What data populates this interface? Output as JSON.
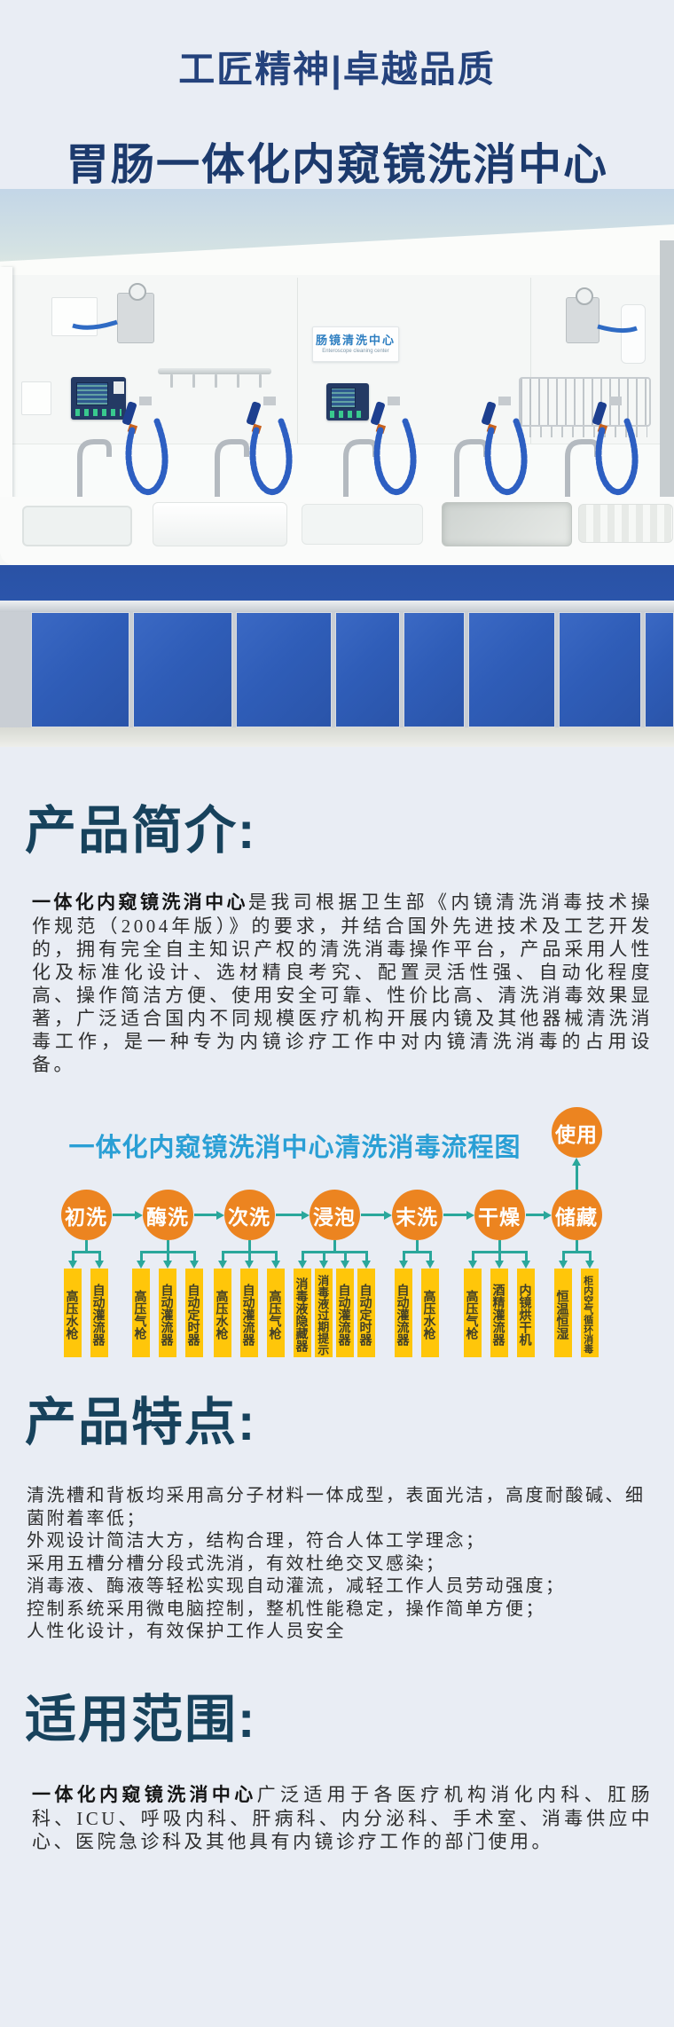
{
  "header": {
    "slogan": "工匠精神|卓越品质",
    "title": "胃肠一体化内窥镜洗消中心"
  },
  "photo": {
    "sign_cn": "肠镜清洗中心",
    "sign_en": "Enteroscope cleaning center"
  },
  "intro": {
    "heading": "产品简介:",
    "lead": "一体化内窥镜洗消中心",
    "body": "是我司根据卫生部《内镜清洗消毒技术操作规范（2004年版）》的要求，并结合国外先进技术及工艺开发的，拥有完全自主知识产权的清洗消毒操作平台，产品采用人性化及标准化设计、选材精良考究、配置灵活性强、自动化程度高、操作简洁方便、使用安全可靠、性价比高、清洗消毒效果显著，广泛适合国内不同规模医疗机构开展内镜及其他器械清洗消毒工作，是一种专为内镜诊疗工作中对内镜清洗消毒的占用设备。"
  },
  "flowchart": {
    "title": "一体化内窥镜洗消中心清洗消毒流程图",
    "final_step": "使用",
    "steps": [
      {
        "label": "初洗",
        "tools": [
          "高压水枪",
          "自动灌流器"
        ]
      },
      {
        "label": "酶洗",
        "tools": [
          "高压气枪",
          "自动灌流器",
          "自动定时器"
        ]
      },
      {
        "label": "次洗",
        "tools": [
          "高压水枪",
          "自动灌流器",
          "高压气枪"
        ]
      },
      {
        "label": "浸泡",
        "tools": [
          "消毒液隐藏器",
          "消毒液过期提示",
          "自动灌流器",
          "自动定时器"
        ]
      },
      {
        "label": "末洗",
        "tools": [
          "自动灌流器",
          "高压水枪"
        ]
      },
      {
        "label": "干燥",
        "tools": [
          "高压气枪",
          "酒精灌流器",
          "内镜烘干机"
        ]
      },
      {
        "label": "储藏",
        "tools": [
          "恒温恒湿",
          "柜内空气循环消毒"
        ]
      }
    ]
  },
  "features": {
    "heading": "产品特点:",
    "lines": [
      "清洗槽和背板均采用高分子材料一体成型，表面光洁，高度耐酸碱、细菌附着率低；",
      "外观设计简洁大方，结构合理，符合人体工学理念；",
      "采用五槽分槽分段式洗消，有效杜绝交叉感染；",
      "消毒液、酶液等轻松实现自动灌流，减轻工作人员劳动强度；",
      "控制系统采用微电脑控制，整机性能稳定，操作简单方便；",
      "人性化设计，有效保护工作人员安全"
    ]
  },
  "scope": {
    "heading": "适用范围:",
    "lead": "一体化内窥镜洗消中心",
    "body": "广泛适用于各医疗机构消化内科、肛肠科、ICU、呼吸内科、肝病科、内分泌科、手术室、消毒供应中心、医院急诊科及其他具有内镜诊疗工作的部门使用。"
  },
  "colors": {
    "page_bg": "#e9edf4",
    "slogan_navy": "#24427c",
    "title_navy": "#1c3a6d",
    "heading_dark": "#17425c",
    "flow_title_blue": "#2a9fd5",
    "step_orange": "#ec8420",
    "tool_yellow": "#ffc60a",
    "arrow_teal": "#2aa79b",
    "cabinet_blue": "#2f5db8"
  }
}
